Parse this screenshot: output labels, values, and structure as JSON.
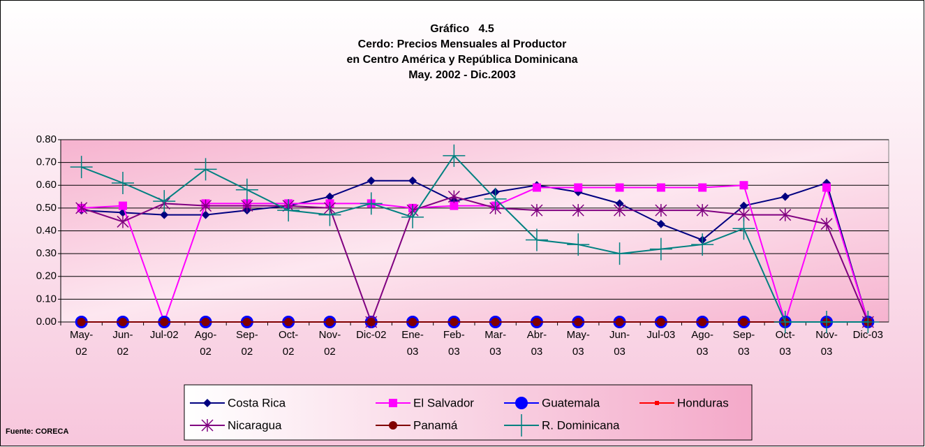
{
  "chart_data": {
    "type": "line",
    "title": [
      "Gráfico   4.5",
      "Cerdo: Precios Mensuales al Productor",
      "en Centro América y República Dominicana",
      "May. 2002 - Dic.2003"
    ],
    "source": "Fuente: CORECA",
    "categories": [
      "May-\n02",
      "Jun-\n02",
      "Jul-02",
      "Ago-\n02",
      "Sep-\n02",
      "Oct-\n02",
      "Nov-\n02",
      "Dic-02",
      "Ene-\n03",
      "Feb-\n03",
      "Mar-\n03",
      "Abr-\n03",
      "May-\n03",
      "Jun-\n03",
      "Jul-03",
      "Ago-\n03",
      "Sep-\n03",
      "Oct-\n03",
      "Nov-\n03",
      "Dic-03"
    ],
    "ylim": [
      0,
      0.8
    ],
    "yticks": [
      {
        "value": 0,
        "label": "0.00"
      },
      {
        "value": 0.1,
        "label": "0.10"
      },
      {
        "value": 0.2,
        "label": "0.20"
      },
      {
        "value": 0.3,
        "label": "0.30"
      },
      {
        "value": 0.4,
        "label": "0.40"
      },
      {
        "value": 0.5,
        "label": "0.50"
      },
      {
        "value": 0.6,
        "label": "0.60"
      },
      {
        "value": 0.7,
        "label": "0.70"
      },
      {
        "value": 0.8,
        "label": "0.80"
      }
    ],
    "grid": true,
    "series": [
      {
        "name": "Costa Rica",
        "color": "#000080",
        "marker": "diamond",
        "values": [
          0.49,
          0.48,
          0.47,
          0.47,
          0.49,
          0.51,
          0.55,
          0.62,
          0.62,
          0.53,
          0.57,
          0.6,
          0.57,
          0.52,
          0.43,
          0.36,
          0.51,
          0.55,
          0.61,
          0
        ]
      },
      {
        "name": "El Salvador",
        "color": "#ff00ff",
        "marker": "square",
        "values": [
          0.5,
          0.51,
          0,
          0.52,
          0.52,
          0.52,
          0.52,
          0.52,
          0.5,
          0.51,
          0.51,
          0.59,
          0.59,
          0.59,
          0.59,
          0.59,
          0.6,
          0,
          0.59,
          0
        ]
      },
      {
        "name": "Guatemala",
        "color": "#0000ff",
        "marker": "circle",
        "values": [
          0,
          0,
          0,
          0,
          0,
          0,
          0,
          0,
          0,
          0,
          0,
          0,
          0,
          0,
          0,
          0,
          0,
          0,
          0,
          0
        ]
      },
      {
        "name": "Honduras",
        "color": "#ff0000",
        "marker": "star",
        "values": [
          0,
          0,
          0,
          0,
          0,
          0,
          0,
          0,
          0,
          0,
          0,
          0,
          0,
          0,
          0,
          0,
          0,
          0,
          0,
          0
        ]
      },
      {
        "name": "Nicaragua",
        "color": "#800080",
        "marker": "asterisk",
        "values": [
          0.5,
          0.44,
          0.52,
          0.51,
          0.51,
          0.51,
          0.5,
          0,
          0.49,
          0.55,
          0.5,
          0.49,
          0.49,
          0.49,
          0.49,
          0.49,
          0.47,
          0.47,
          0.43,
          0
        ]
      },
      {
        "name": "Panamá",
        "color": "#800000",
        "marker": "dot",
        "values": [
          0,
          0,
          0,
          0,
          0,
          0,
          0,
          0,
          0,
          0,
          0,
          0,
          0,
          0,
          0,
          0,
          0,
          0,
          0,
          0
        ]
      },
      {
        "name": "R. Dominicana",
        "color": "#008080",
        "marker": "plus",
        "values": [
          0.68,
          0.61,
          0.53,
          0.67,
          0.58,
          0.49,
          0.47,
          0.52,
          0.46,
          0.73,
          0.54,
          0.36,
          0.34,
          0.3,
          0.32,
          0.34,
          0.41,
          0,
          0,
          0
        ]
      }
    ]
  }
}
